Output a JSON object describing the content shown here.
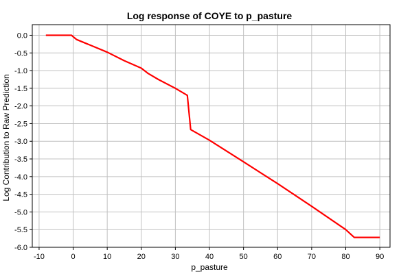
{
  "chart_data": {
    "type": "line",
    "title": "Log response of COYE to p_pasture",
    "xlabel": "p_pasture",
    "ylabel": "Log Contribution to Raw Prediction",
    "xlim": [
      -12,
      93
    ],
    "ylim": [
      -6.0,
      0.3
    ],
    "xticks": [
      -10,
      0,
      10,
      20,
      30,
      40,
      50,
      60,
      70,
      80,
      90
    ],
    "xtick_labels": [
      "-10",
      "0",
      "10",
      "20",
      "30",
      "40",
      "50",
      "60",
      "70",
      "80",
      "90"
    ],
    "yticks": [
      0.0,
      -0.5,
      -1.0,
      -1.5,
      -2.0,
      -2.5,
      -3.0,
      -3.5,
      -4.0,
      -4.5,
      -5.0,
      -5.5,
      -6.0
    ],
    "ytick_labels": [
      "0.0",
      "-0.5",
      "-1.0",
      "-1.5",
      "-2.0",
      "-2.5",
      "-3.0",
      "-3.5",
      "-4.0",
      "-4.5",
      "-5.0",
      "-5.5",
      "-6.0"
    ],
    "grid": true,
    "colors": {
      "series": "#ff0000",
      "grid": "#c0c0c0",
      "frame": "#000000"
    },
    "series": [
      {
        "x": [
          -8,
          -0.5,
          0.5,
          1,
          5,
          10,
          15,
          20,
          22,
          25,
          30,
          33.5,
          34.5,
          40,
          50,
          60,
          70,
          80,
          82.5,
          90
        ],
        "y": [
          0.0,
          0.0,
          -0.08,
          -0.12,
          -0.28,
          -0.48,
          -0.72,
          -0.93,
          -1.08,
          -1.25,
          -1.5,
          -1.7,
          -2.67,
          -2.97,
          -3.58,
          -4.2,
          -4.84,
          -5.5,
          -5.72,
          -5.72
        ]
      }
    ]
  }
}
